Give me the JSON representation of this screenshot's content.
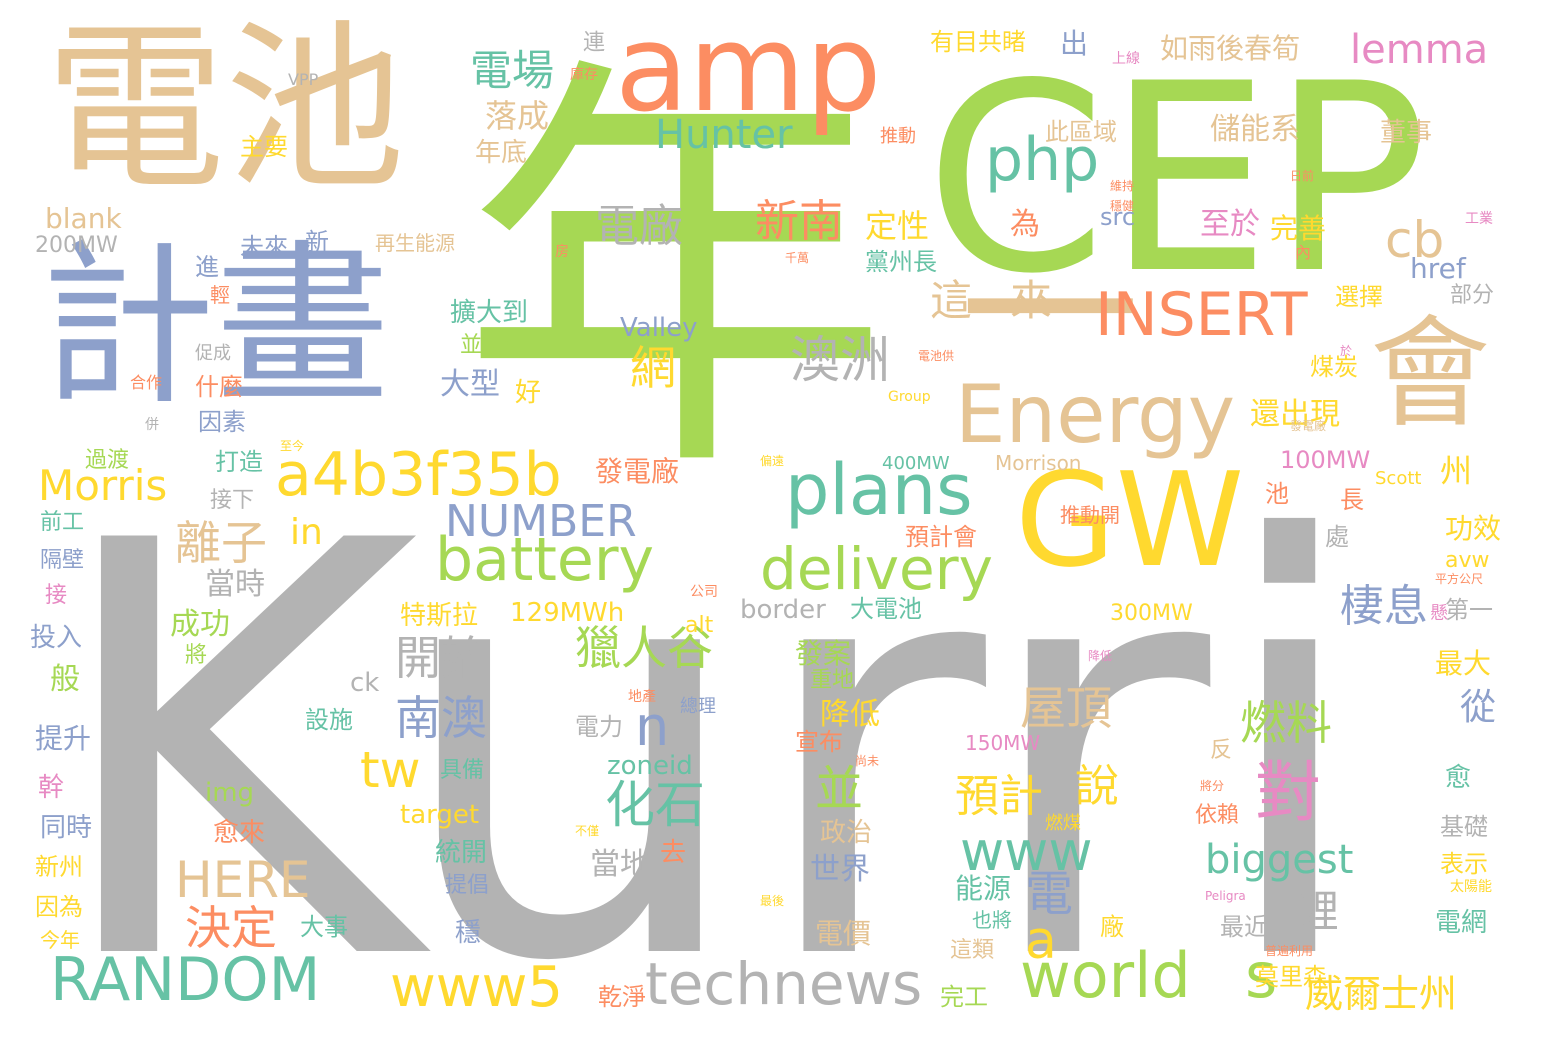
{
  "palette": {
    "grey": "#b3b3b3",
    "green": "#a6d854",
    "tan": "#e5c494",
    "blue": "#8da0cb",
    "orange": "#fc8d62",
    "yellow": "#ffd92f",
    "teal": "#66c2a5",
    "pink": "#e78ac3"
  },
  "words": [
    "Kurri",
    "年",
    "CEP",
    "電池",
    "計畫",
    "amp",
    "GW",
    "一",
    "會",
    "Energy",
    "plans",
    "a4b3f35b",
    "battery",
    "delivery",
    "php",
    "INSERT",
    "Hunter",
    "cb",
    "電場",
    "lemma",
    "Morris",
    "NUMBER",
    "RANDOM",
    "technews",
    "www5",
    "world",
    "s",
    "威爾士州",
    "澳洲",
    "電廠",
    "新南",
    "這",
    "來",
    "網",
    "離子",
    "開始",
    "南澳",
    "化石",
    "獵人谷",
    "屋頂",
    "燃料",
    "對",
    "預計",
    "說",
    "並",
    "www",
    "電",
    "棲息",
    "n",
    "a",
    "tw",
    "HERE",
    "決定",
    "in",
    "biggest",
    "鋰",
    "有目共睹",
    "出",
    "如雨後春筍",
    "連",
    "VPP",
    "主要",
    "落成",
    "年底",
    "此區域",
    "儲能系",
    "董事",
    "blank",
    "200MW",
    "未來",
    "新",
    "再生能源",
    "定性",
    "黨州長",
    "src",
    "至於",
    "完善",
    "為",
    "href",
    "選擇",
    "部分",
    "Valley",
    "並持續",
    "擴大到",
    "進",
    "輕",
    "促成",
    "什麼",
    "因素",
    "大型",
    "好",
    "還出現",
    "煤炭",
    "合作",
    "併",
    "過渡",
    "打造",
    "接下",
    "前工",
    "隔壁",
    "接",
    "當時",
    "成功",
    "將",
    "投入",
    "般",
    "提升",
    "幹",
    "同時",
    "新州",
    "因為",
    "今年",
    "發電廠",
    "400MW",
    "Morrison",
    "100MW",
    "池",
    "長",
    "州",
    "處",
    "Scott",
    "功效",
    "avw",
    "第一",
    "特斯拉",
    "129MWh",
    "border",
    "大電池",
    "300MW",
    "alt",
    "發案",
    "重地",
    "ck",
    "降低",
    "宣布",
    "電力",
    "設施",
    "150MW",
    "img",
    "zoneid",
    "target",
    "愈來",
    "政治",
    "世界",
    "統開",
    "去",
    "當地",
    "具備",
    "提倡",
    "能源",
    "穩",
    "大事",
    "電價",
    "最近",
    "也將",
    "這類",
    "乾淨",
    "完工",
    "廠",
    "莫里森",
    "依賴",
    "燃煤",
    "基礎",
    "表示",
    "愈",
    "從",
    "最大",
    "懸",
    "電網",
    "反",
    "推動",
    "推動開",
    "預計會",
    "上線",
    "庫存",
    "日前",
    "工業",
    "內",
    "千萬",
    "房",
    "於",
    "電池供",
    "Group",
    "偏遠",
    "公司",
    "地產",
    "總理",
    "平方公尺",
    "降低",
    "尚未",
    "將分",
    "不僅",
    "發電廠",
    "Peligra",
    "太陽能",
    "普遍利用",
    "維持",
    "穩健",
    "至今",
    "最後"
  ]
}
